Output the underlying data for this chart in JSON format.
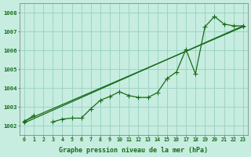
{
  "xlabel": "Graphe pression niveau de la mer (hPa)",
  "background_color": "#c6ede0",
  "grid_color": "#9ed4c4",
  "line_color": "#1a6b1a",
  "marker_color": "#1a6b1a",
  "hours": [
    0,
    1,
    2,
    3,
    4,
    5,
    6,
    7,
    8,
    9,
    10,
    11,
    12,
    13,
    14,
    15,
    16,
    17,
    18,
    19,
    20,
    21,
    22,
    23
  ],
  "series_main": [
    1002.2,
    1002.55,
    null,
    1002.2,
    1002.35,
    1002.4,
    1002.4,
    1002.9,
    1003.35,
    1003.55,
    1003.8,
    1003.6,
    1003.5,
    1003.5,
    1003.75,
    1004.5,
    1004.85,
    1006.05,
    1004.75,
    1007.25,
    1007.8,
    1007.4,
    1007.3,
    1007.3
  ],
  "line1_pts": [
    [
      0,
      1002.15
    ],
    [
      23,
      1007.3
    ]
  ],
  "line2_pts": [
    [
      0,
      1002.25
    ],
    [
      23,
      1007.25
    ]
  ],
  "ylim": [
    1001.5,
    1008.5
  ],
  "yticks": [
    1002,
    1003,
    1004,
    1005,
    1006,
    1007,
    1008
  ],
  "xlim": [
    -0.5,
    23.5
  ],
  "figsize": [
    3.2,
    2.0
  ],
  "dpi": 100
}
